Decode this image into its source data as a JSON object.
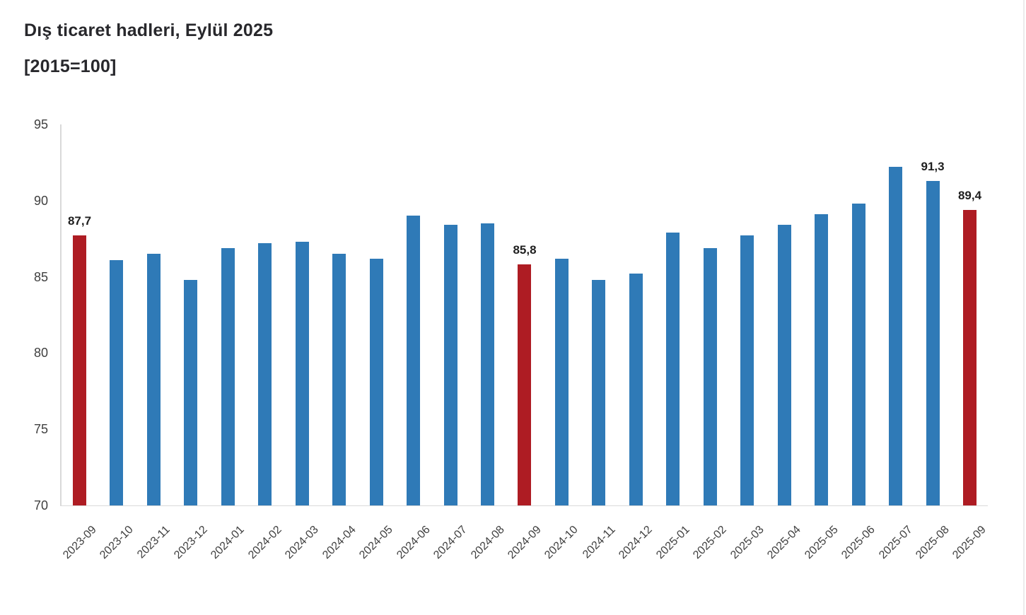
{
  "title": {
    "line1": "Dış ticaret hadleri, Eylül 2025",
    "line2": "[2015=100]"
  },
  "chart_data": {
    "type": "bar",
    "title": "Dış ticaret hadleri, Eylül 2025",
    "subtitle": "[2015=100]",
    "categories": [
      "2023-09",
      "2023-10",
      "2023-11",
      "2023-12",
      "2024-01",
      "2024-02",
      "2024-03",
      "2024-04",
      "2024-05",
      "2024-06",
      "2024-07",
      "2024-08",
      "2024-09",
      "2024-10",
      "2024-11",
      "2024-12",
      "2025-01",
      "2025-02",
      "2025-03",
      "2025-04",
      "2025-05",
      "2025-06",
      "2025-07",
      "2025-08",
      "2025-09"
    ],
    "values": [
      87.7,
      86.1,
      86.5,
      84.8,
      86.9,
      87.2,
      87.3,
      86.5,
      86.2,
      89.0,
      88.4,
      88.5,
      85.8,
      86.2,
      84.8,
      85.2,
      87.9,
      86.9,
      87.7,
      88.4,
      89.1,
      89.8,
      92.2,
      91.3,
      89.4
    ],
    "value_labels": {
      "0": "87,7",
      "12": "85,8",
      "23": "91,3",
      "24": "89,4"
    },
    "highlight_indices": [
      0,
      12,
      24
    ],
    "yticks": [
      70,
      75,
      80,
      85,
      90,
      95
    ],
    "ylim": [
      70,
      95
    ],
    "grid": false,
    "legend": false,
    "colors": {
      "bar": "#2f7ab7",
      "highlight": "#ae1c23",
      "axis_line": "#d9d9d9",
      "tick_text": "#3f3f3f",
      "label_text": "#1f1f1f"
    }
  }
}
